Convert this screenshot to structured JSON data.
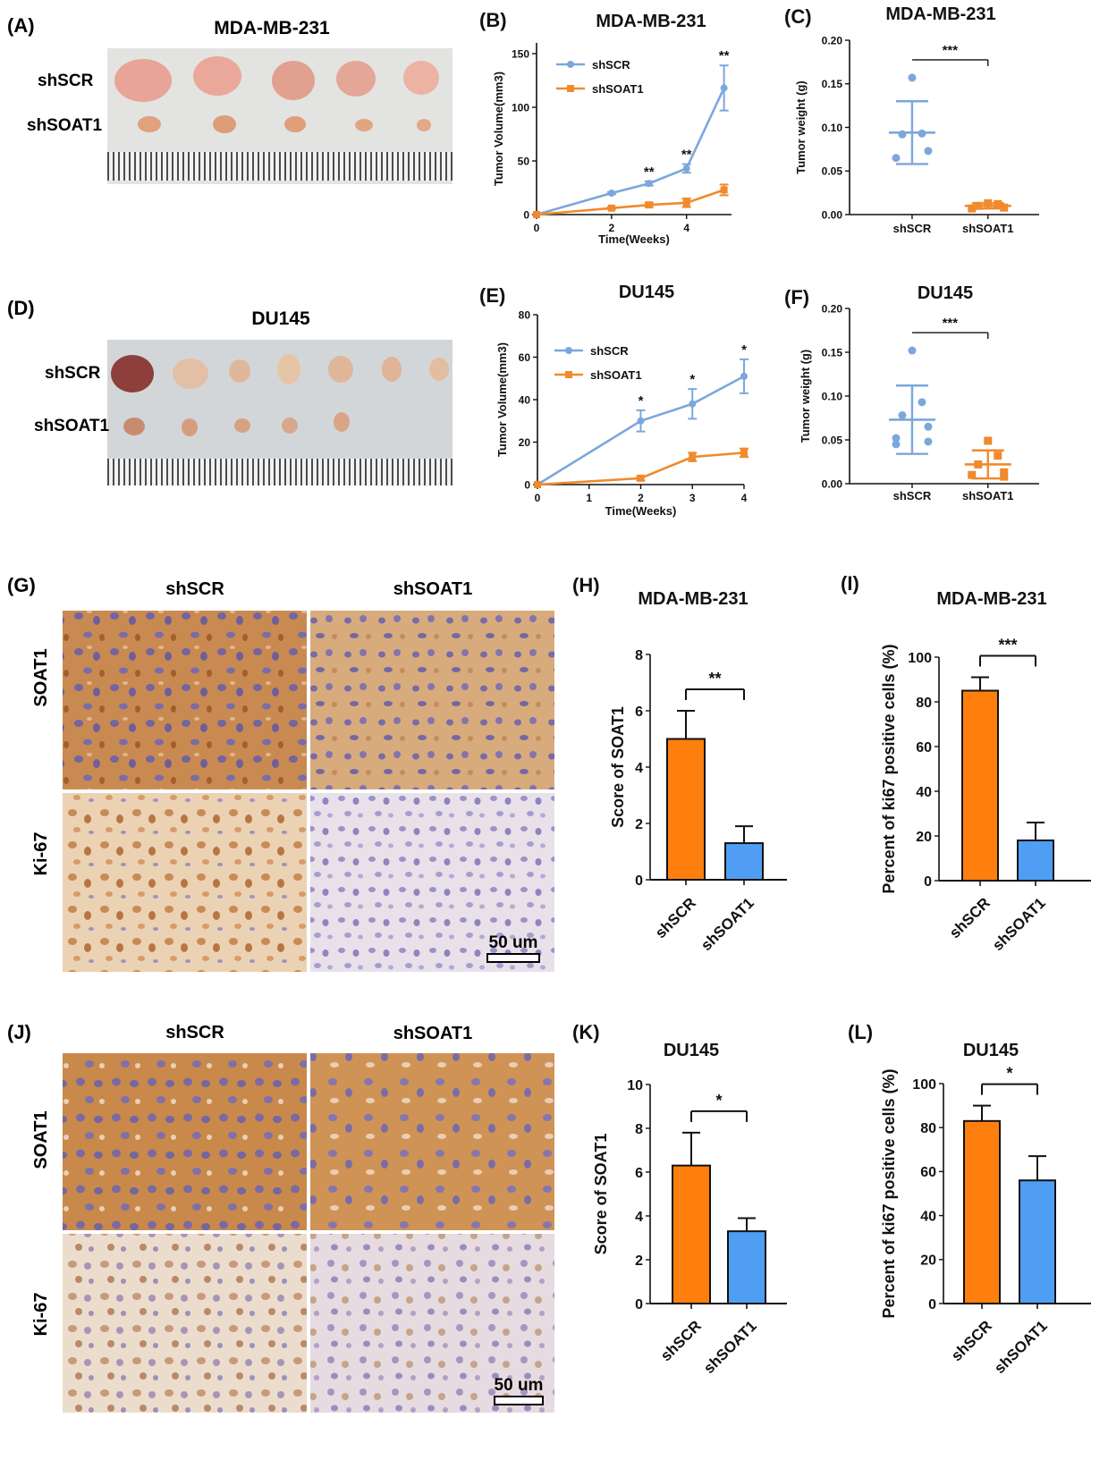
{
  "colors": {
    "blue": "#7ba7dc",
    "orange": "#f08a2c",
    "bar_orange": "#ff7f0e",
    "bar_blue": "#4f9ef3",
    "stain_brown": "#b5713a",
    "nucleus_purple": "#7b6ca8"
  },
  "panels": {
    "A": {
      "label": "(A)",
      "title": "MDA-MB-231",
      "rows": [
        "shSCR",
        "shSOAT1"
      ]
    },
    "D": {
      "label": "(D)",
      "title": "DU145",
      "rows": [
        "shSCR",
        "shSOAT1"
      ]
    },
    "G": {
      "label": "(G)",
      "cols": [
        "shSCR",
        "shSOAT1"
      ],
      "rows": [
        "SOAT1",
        "Ki-67"
      ],
      "scale": "50 um"
    },
    "J": {
      "label": "(J)",
      "cols": [
        "shSCR",
        "shSOAT1"
      ],
      "rows": [
        "SOAT1",
        "Ki-67"
      ],
      "scale": "50 um"
    }
  },
  "chart_data": [
    {
      "panel": "(B)",
      "type": "line",
      "title": "MDA-MB-231",
      "xlabel": "Time(Weeks)",
      "ylabel": "Tumor Volume(mm3)",
      "xlim": [
        0,
        5.2
      ],
      "ylim": [
        0,
        160
      ],
      "xticks": [
        0,
        2,
        4
      ],
      "yticks": [
        0,
        50,
        100,
        150
      ],
      "legend": "top-left",
      "series": [
        {
          "name": "shSCR",
          "color": "#7ba7dc",
          "x": [
            0,
            2,
            3,
            4,
            5
          ],
          "y": [
            0,
            20,
            29,
            43,
            118
          ],
          "err": [
            0,
            1,
            2,
            4,
            21
          ]
        },
        {
          "name": "shSOAT1",
          "color": "#f08a2c",
          "x": [
            0,
            2,
            3,
            4,
            5
          ],
          "y": [
            0,
            6,
            9,
            11,
            23
          ],
          "err": [
            0,
            1,
            2,
            4,
            5
          ]
        }
      ],
      "annotations": [
        {
          "x": 3,
          "text": "**"
        },
        {
          "x": 4,
          "text": "**"
        },
        {
          "x": 5,
          "text": "**"
        }
      ]
    },
    {
      "panel": "(C)",
      "type": "scatter",
      "title": "MDA-MB-231",
      "ylabel": "Tumor weight (g)",
      "ylim": [
        0,
        0.2
      ],
      "yticks": [
        "0.00",
        "0.05",
        "0.10",
        "0.15",
        "0.20"
      ],
      "categories": [
        "shSCR",
        "shSOAT1"
      ],
      "groups": [
        {
          "name": "shSCR",
          "color": "#7ba7dc",
          "marker": "circle",
          "points": [
            0.157,
            0.093,
            0.092,
            0.073,
            0.065
          ],
          "mean": 0.094,
          "sd": 0.036
        },
        {
          "name": "shSOAT1",
          "color": "#f08a2c",
          "marker": "square",
          "points": [
            0.013,
            0.012,
            0.01,
            0.008,
            0.007
          ],
          "mean": 0.01,
          "sd": 0.003
        }
      ],
      "significance": "***"
    },
    {
      "panel": "(E)",
      "type": "line",
      "title": "DU145",
      "xlabel": "Time(Weeks)",
      "ylabel": "Tumor Volume(mm3)",
      "xlim": [
        0,
        4
      ],
      "ylim": [
        0,
        80
      ],
      "xticks": [
        0,
        1,
        2,
        3,
        4
      ],
      "yticks": [
        0,
        20,
        40,
        60,
        80
      ],
      "legend": "top-left",
      "series": [
        {
          "name": "shSCR",
          "color": "#7ba7dc",
          "x": [
            0,
            2,
            3,
            4
          ],
          "y": [
            0,
            30,
            38,
            51
          ],
          "err": [
            0,
            5,
            7,
            8
          ]
        },
        {
          "name": "shSOAT1",
          "color": "#f08a2c",
          "x": [
            0,
            2,
            3,
            4
          ],
          "y": [
            0,
            3,
            13,
            15
          ],
          "err": [
            0,
            1,
            2,
            2
          ]
        }
      ],
      "annotations": [
        {
          "x": 2,
          "text": "*"
        },
        {
          "x": 3,
          "text": "*"
        },
        {
          "x": 4,
          "text": "*"
        }
      ]
    },
    {
      "panel": "(F)",
      "type": "scatter",
      "title": "DU145",
      "ylabel": "Tumor weight (g)",
      "ylim": [
        0,
        0.2
      ],
      "yticks": [
        "0.00",
        "0.05",
        "0.10",
        "0.15",
        "0.20"
      ],
      "categories": [
        "shSCR",
        "shSOAT1"
      ],
      "groups": [
        {
          "name": "shSCR",
          "color": "#7ba7dc",
          "marker": "circle",
          "points": [
            0.152,
            0.093,
            0.078,
            0.065,
            0.052,
            0.048,
            0.045
          ],
          "mean": 0.073,
          "sd": 0.039
        },
        {
          "name": "shSOAT1",
          "color": "#f08a2c",
          "marker": "square",
          "points": [
            0.049,
            0.032,
            0.022,
            0.013,
            0.01,
            0.008
          ],
          "mean": 0.022,
          "sd": 0.016
        }
      ],
      "significance": "***"
    },
    {
      "panel": "(H)",
      "type": "bar",
      "title": "MDA-MB-231",
      "ylabel": "Score of SOAT1",
      "ylim": [
        0,
        8
      ],
      "yticks": [
        0,
        2,
        4,
        6,
        8
      ],
      "categories": [
        "shSCR",
        "shSOAT1"
      ],
      "values": [
        5.0,
        1.3
      ],
      "err": [
        1.0,
        0.6
      ],
      "bar_colors": [
        "#ff7f0e",
        "#4f9ef3"
      ],
      "significance": "**"
    },
    {
      "panel": "(I)",
      "type": "bar",
      "title": "MDA-MB-231",
      "ylabel": "Percent of ki67 positive cells (%)",
      "ylim": [
        0,
        100
      ],
      "yticks": [
        0,
        20,
        40,
        60,
        80,
        100
      ],
      "categories": [
        "shSCR",
        "shSOAT1"
      ],
      "values": [
        85,
        18
      ],
      "err": [
        6,
        8
      ],
      "bar_colors": [
        "#ff7f0e",
        "#4f9ef3"
      ],
      "significance": "***"
    },
    {
      "panel": "(K)",
      "type": "bar",
      "title": "DU145",
      "ylabel": "Score of SOAT1",
      "ylim": [
        0,
        10
      ],
      "yticks": [
        0,
        2,
        4,
        6,
        8,
        10
      ],
      "categories": [
        "shSCR",
        "shSOAT1"
      ],
      "values": [
        6.3,
        3.3
      ],
      "err": [
        1.5,
        0.6
      ],
      "bar_colors": [
        "#ff7f0e",
        "#4f9ef3"
      ],
      "significance": "*"
    },
    {
      "panel": "(L)",
      "type": "bar",
      "title": "DU145",
      "ylabel": "Percent of ki67 positive cells (%)",
      "ylim": [
        0,
        100
      ],
      "yticks": [
        0,
        20,
        40,
        60,
        80,
        100
      ],
      "categories": [
        "shSCR",
        "shSOAT1"
      ],
      "values": [
        83,
        56
      ],
      "err": [
        7,
        11
      ],
      "bar_colors": [
        "#ff7f0e",
        "#4f9ef3"
      ],
      "significance": "*"
    }
  ]
}
